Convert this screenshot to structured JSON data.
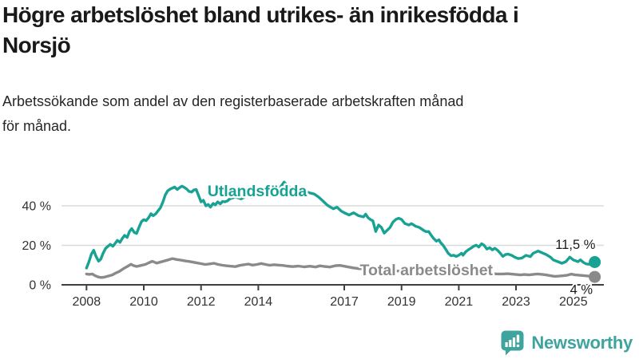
{
  "title": "Högre arbetslöshet bland utrikes- än inrikesfödda i Norsjö",
  "title_lines": [
    "Högre arbetslöshet bland utrikes- än inrikesfödda i",
    "Norsjö"
  ],
  "subtitle_lines": [
    "Arbetssökande som andel av den registerbaserade arbetskraften månad",
    "för månad."
  ],
  "branding": {
    "logo_text": "Newsworthy",
    "logo_color": "#3EA49D",
    "logo_icon": "speech-bubble-bar-chart"
  },
  "colors": {
    "accent_teal": "#17A293",
    "series_gray": "#8A8A8A",
    "grid": "#DBDBDB",
    "axis": "#3F3F3F",
    "tick_text": "#333333",
    "value_text": "#1A1A1A"
  },
  "chart_data": {
    "type": "line",
    "unit": "%",
    "grid": true,
    "xlim": [
      2008,
      2025.79
    ],
    "ylim": [
      0,
      53
    ],
    "x_ticks": [
      {
        "v": 2008,
        "label": "2008"
      },
      {
        "v": 2010,
        "label": "2010"
      },
      {
        "v": 2012,
        "label": "2012"
      },
      {
        "v": 2014,
        "label": "2014"
      },
      {
        "v": 2017,
        "label": "2017"
      },
      {
        "v": 2019,
        "label": "2019"
      },
      {
        "v": 2021,
        "label": "2021"
      },
      {
        "v": 2023,
        "label": "2023"
      },
      {
        "v": 2025,
        "label": "2025"
      }
    ],
    "y_ticks": [
      {
        "v": 0,
        "label": "0 %"
      },
      {
        "v": 20,
        "label": "20 %"
      },
      {
        "v": 40,
        "label": "40 %"
      }
    ],
    "series": [
      {
        "name": "Utlandsfödda",
        "slug": "utlandsfodda",
        "color": "#17A293",
        "end_value": 11.5,
        "end_label": "11,5 %",
        "label_pos": {
          "t": 2013.96,
          "v": 44.8
        },
        "end_label_pos": {
          "t": 2025.77,
          "v": 18.2
        },
        "points": [
          [
            2008.0,
            8.5
          ],
          [
            2008.08,
            11.5
          ],
          [
            2008.17,
            15.5
          ],
          [
            2008.25,
            17.5
          ],
          [
            2008.33,
            14.5
          ],
          [
            2008.42,
            12.0
          ],
          [
            2008.5,
            13.0
          ],
          [
            2008.58,
            16.0
          ],
          [
            2008.67,
            18.5
          ],
          [
            2008.75,
            19.5
          ],
          [
            2008.83,
            20.5
          ],
          [
            2008.92,
            19.5
          ],
          [
            2009.0,
            21.0
          ],
          [
            2009.08,
            22.5
          ],
          [
            2009.17,
            21.5
          ],
          [
            2009.25,
            23.5
          ],
          [
            2009.33,
            25.0
          ],
          [
            2009.42,
            24.0
          ],
          [
            2009.5,
            27.0
          ],
          [
            2009.58,
            28.5
          ],
          [
            2009.67,
            26.5
          ],
          [
            2009.75,
            26.0
          ],
          [
            2009.83,
            29.0
          ],
          [
            2009.92,
            32.0
          ],
          [
            2010.0,
            33.0
          ],
          [
            2010.08,
            32.5
          ],
          [
            2010.17,
            34.0
          ],
          [
            2010.25,
            36.0
          ],
          [
            2010.33,
            35.0
          ],
          [
            2010.42,
            36.0
          ],
          [
            2010.5,
            37.5
          ],
          [
            2010.58,
            39.0
          ],
          [
            2010.67,
            42.0
          ],
          [
            2010.75,
            45.5
          ],
          [
            2010.83,
            47.5
          ],
          [
            2010.92,
            48.5
          ],
          [
            2011.0,
            49.0
          ],
          [
            2011.08,
            49.5
          ],
          [
            2011.17,
            48.3
          ],
          [
            2011.25,
            49.2
          ],
          [
            2011.33,
            50.0
          ],
          [
            2011.42,
            49.3
          ],
          [
            2011.5,
            48.5
          ],
          [
            2011.58,
            47.3
          ],
          [
            2011.67,
            47.0
          ],
          [
            2011.75,
            48.0
          ],
          [
            2011.83,
            48.3
          ],
          [
            2011.92,
            45.0
          ],
          [
            2012.0,
            42.0
          ],
          [
            2012.08,
            42.8
          ],
          [
            2012.17,
            40.0
          ],
          [
            2012.25,
            40.7
          ],
          [
            2012.33,
            39.3
          ],
          [
            2012.42,
            41.2
          ],
          [
            2012.5,
            40.5
          ],
          [
            2012.58,
            42.0
          ],
          [
            2012.67,
            41.0
          ],
          [
            2012.75,
            42.2
          ],
          [
            2012.83,
            42.0
          ],
          [
            2012.92,
            42.5
          ],
          [
            2013.0,
            43.5
          ],
          [
            2013.2,
            44.5
          ],
          [
            2013.4,
            43.5
          ],
          [
            2013.6,
            45.0
          ],
          [
            2013.8,
            44.5
          ],
          [
            2014.0,
            45.5
          ],
          [
            2014.2,
            46.0
          ],
          [
            2014.4,
            45.0
          ],
          [
            2014.6,
            47.0
          ],
          [
            2014.75,
            49.0
          ],
          [
            2014.9,
            52.0
          ],
          [
            2015.05,
            50.0
          ],
          [
            2015.2,
            48.0
          ],
          [
            2015.4,
            47.0
          ],
          [
            2015.6,
            47.5
          ],
          [
            2015.8,
            46.5
          ],
          [
            2015.95,
            46.0
          ],
          [
            2016.1,
            44.5
          ],
          [
            2016.25,
            42.5
          ],
          [
            2016.4,
            40.5
          ],
          [
            2016.5,
            39.5
          ],
          [
            2016.62,
            38.5
          ],
          [
            2016.75,
            39.3
          ],
          [
            2016.9,
            37.3
          ],
          [
            2017.0,
            36.5
          ],
          [
            2017.17,
            35.4
          ],
          [
            2017.33,
            36.5
          ],
          [
            2017.5,
            35.0
          ],
          [
            2017.67,
            34.4
          ],
          [
            2017.75,
            35.8
          ],
          [
            2017.83,
            34.0
          ],
          [
            2017.92,
            33.0
          ],
          [
            2018.0,
            32.4
          ],
          [
            2018.1,
            27.0
          ],
          [
            2018.2,
            30.3
          ],
          [
            2018.3,
            29.0
          ],
          [
            2018.4,
            26.2
          ],
          [
            2018.5,
            27.6
          ],
          [
            2018.6,
            29.0
          ],
          [
            2018.7,
            31.7
          ],
          [
            2018.8,
            33.1
          ],
          [
            2018.9,
            33.7
          ],
          [
            2019.0,
            33.1
          ],
          [
            2019.12,
            31.0
          ],
          [
            2019.26,
            30.3
          ],
          [
            2019.35,
            31.0
          ],
          [
            2019.49,
            29.7
          ],
          [
            2019.63,
            29.0
          ],
          [
            2019.77,
            27.6
          ],
          [
            2019.86,
            26.9
          ],
          [
            2019.95,
            27.0
          ],
          [
            2020.03,
            25.2
          ],
          [
            2020.12,
            23.5
          ],
          [
            2020.22,
            22.1
          ],
          [
            2020.31,
            22.8
          ],
          [
            2020.36,
            21.5
          ],
          [
            2020.45,
            20.1
          ],
          [
            2020.54,
            18.1
          ],
          [
            2020.63,
            16.0
          ],
          [
            2020.73,
            14.7
          ],
          [
            2020.82,
            15.0
          ],
          [
            2020.91,
            14.4
          ],
          [
            2021.0,
            15.0
          ],
          [
            2021.1,
            16.0
          ],
          [
            2021.15,
            15.0
          ],
          [
            2021.24,
            16.7
          ],
          [
            2021.33,
            17.7
          ],
          [
            2021.42,
            18.5
          ],
          [
            2021.52,
            19.5
          ],
          [
            2021.61,
            20.1
          ],
          [
            2021.7,
            19.1
          ],
          [
            2021.8,
            20.8
          ],
          [
            2021.89,
            19.9
          ],
          [
            2021.98,
            18.1
          ],
          [
            2022.08,
            18.8
          ],
          [
            2022.17,
            17.7
          ],
          [
            2022.26,
            18.5
          ],
          [
            2022.36,
            17.4
          ],
          [
            2022.45,
            16.0
          ],
          [
            2022.54,
            14.4
          ],
          [
            2022.64,
            15.4
          ],
          [
            2022.73,
            15.5
          ],
          [
            2022.85,
            14.9
          ],
          [
            2022.95,
            14.0
          ],
          [
            2023.07,
            13.3
          ],
          [
            2023.2,
            13.5
          ],
          [
            2023.35,
            14.9
          ],
          [
            2023.5,
            14.3
          ],
          [
            2023.6,
            16.0
          ],
          [
            2023.77,
            17.1
          ],
          [
            2023.9,
            16.3
          ],
          [
            2024.05,
            15.3
          ],
          [
            2024.2,
            14.0
          ],
          [
            2024.3,
            12.6
          ],
          [
            2024.46,
            11.7
          ],
          [
            2024.6,
            10.9
          ],
          [
            2024.74,
            11.7
          ],
          [
            2024.88,
            14.0
          ],
          [
            2025.0,
            12.6
          ],
          [
            2025.16,
            11.7
          ],
          [
            2025.25,
            12.6
          ],
          [
            2025.35,
            11.4
          ],
          [
            2025.45,
            10.6
          ],
          [
            2025.6,
            10.3
          ],
          [
            2025.75,
            11.5
          ]
        ]
      },
      {
        "name": "Total arbetslöshet",
        "slug": "total-arbetsloshet",
        "color": "#8A8A8A",
        "end_value": 4,
        "end_label": "4 %",
        "label_pos": {
          "t": 2019.87,
          "v": 4.85
        },
        "end_label_pos": {
          "t": 2025.68,
          "v": -4.6
        },
        "points": [
          [
            2008.0,
            5.5
          ],
          [
            2008.1,
            5.3
          ],
          [
            2008.2,
            5.5
          ],
          [
            2008.3,
            4.6
          ],
          [
            2008.4,
            4.0
          ],
          [
            2008.5,
            3.7
          ],
          [
            2008.6,
            3.8
          ],
          [
            2008.7,
            4.2
          ],
          [
            2008.8,
            4.6
          ],
          [
            2008.9,
            5.0
          ],
          [
            2009.0,
            5.8
          ],
          [
            2009.15,
            6.8
          ],
          [
            2009.3,
            8.3
          ],
          [
            2009.45,
            9.5
          ],
          [
            2009.55,
            10.4
          ],
          [
            2009.65,
            9.7
          ],
          [
            2009.75,
            9.3
          ],
          [
            2009.85,
            9.6
          ],
          [
            2009.95,
            10.0
          ],
          [
            2010.05,
            10.3
          ],
          [
            2010.2,
            11.3
          ],
          [
            2010.3,
            11.9
          ],
          [
            2010.45,
            11.0
          ],
          [
            2010.55,
            11.4
          ],
          [
            2010.7,
            12.0
          ],
          [
            2010.85,
            12.6
          ],
          [
            2011.0,
            13.3
          ],
          [
            2011.15,
            12.8
          ],
          [
            2011.3,
            12.5
          ],
          [
            2011.45,
            12.1
          ],
          [
            2011.6,
            11.8
          ],
          [
            2011.75,
            11.4
          ],
          [
            2011.9,
            11.0
          ],
          [
            2012.0,
            10.7
          ],
          [
            2012.15,
            10.3
          ],
          [
            2012.3,
            10.6
          ],
          [
            2012.45,
            10.9
          ],
          [
            2012.6,
            10.3
          ],
          [
            2012.75,
            9.9
          ],
          [
            2012.9,
            9.6
          ],
          [
            2013.05,
            9.4
          ],
          [
            2013.2,
            9.2
          ],
          [
            2013.35,
            9.8
          ],
          [
            2013.5,
            10.2
          ],
          [
            2013.65,
            10.5
          ],
          [
            2013.8,
            10.0
          ],
          [
            2013.95,
            10.3
          ],
          [
            2014.1,
            10.8
          ],
          [
            2014.25,
            10.3
          ],
          [
            2014.4,
            9.9
          ],
          [
            2014.55,
            10.2
          ],
          [
            2014.7,
            10.0
          ],
          [
            2014.85,
            9.8
          ],
          [
            2015.0,
            9.5
          ],
          [
            2015.2,
            9.2
          ],
          [
            2015.4,
            9.5
          ],
          [
            2015.6,
            9.1
          ],
          [
            2015.8,
            9.4
          ],
          [
            2016.0,
            9.0
          ],
          [
            2016.15,
            9.6
          ],
          [
            2016.3,
            9.3
          ],
          [
            2016.5,
            9.0
          ],
          [
            2016.7,
            9.7
          ],
          [
            2016.85,
            9.8
          ],
          [
            2017.0,
            9.4
          ],
          [
            2017.15,
            9.0
          ],
          [
            2017.3,
            8.6
          ],
          [
            2017.5,
            8.2
          ],
          [
            2017.7,
            8.0
          ],
          [
            2017.9,
            7.7
          ],
          [
            2018.1,
            7.4
          ],
          [
            2018.35,
            7.1
          ],
          [
            2018.6,
            7.2
          ],
          [
            2018.85,
            7.0
          ],
          [
            2019.1,
            6.9
          ],
          [
            2019.35,
            6.7
          ],
          [
            2019.6,
            6.5
          ],
          [
            2019.85,
            6.6
          ],
          [
            2020.1,
            7.0
          ],
          [
            2020.35,
            7.7
          ],
          [
            2020.6,
            7.9
          ],
          [
            2020.85,
            7.5
          ],
          [
            2021.1,
            7.0
          ],
          [
            2021.35,
            6.6
          ],
          [
            2021.6,
            6.2
          ],
          [
            2021.85,
            5.9
          ],
          [
            2022.1,
            5.7
          ],
          [
            2022.35,
            5.5
          ],
          [
            2022.55,
            5.5
          ],
          [
            2022.7,
            5.6
          ],
          [
            2022.85,
            5.4
          ],
          [
            2023.0,
            5.2
          ],
          [
            2023.15,
            5.0
          ],
          [
            2023.3,
            5.2
          ],
          [
            2023.45,
            5.0
          ],
          [
            2023.6,
            5.3
          ],
          [
            2023.75,
            5.5
          ],
          [
            2023.9,
            5.3
          ],
          [
            2024.05,
            5.0
          ],
          [
            2024.2,
            4.6
          ],
          [
            2024.35,
            4.3
          ],
          [
            2024.5,
            4.4
          ],
          [
            2024.65,
            4.6
          ],
          [
            2024.8,
            4.9
          ],
          [
            2024.92,
            5.4
          ],
          [
            2025.05,
            5.1
          ],
          [
            2025.2,
            4.9
          ],
          [
            2025.35,
            4.7
          ],
          [
            2025.5,
            4.5
          ],
          [
            2025.65,
            4.3
          ],
          [
            2025.75,
            4.0
          ]
        ]
      }
    ]
  }
}
